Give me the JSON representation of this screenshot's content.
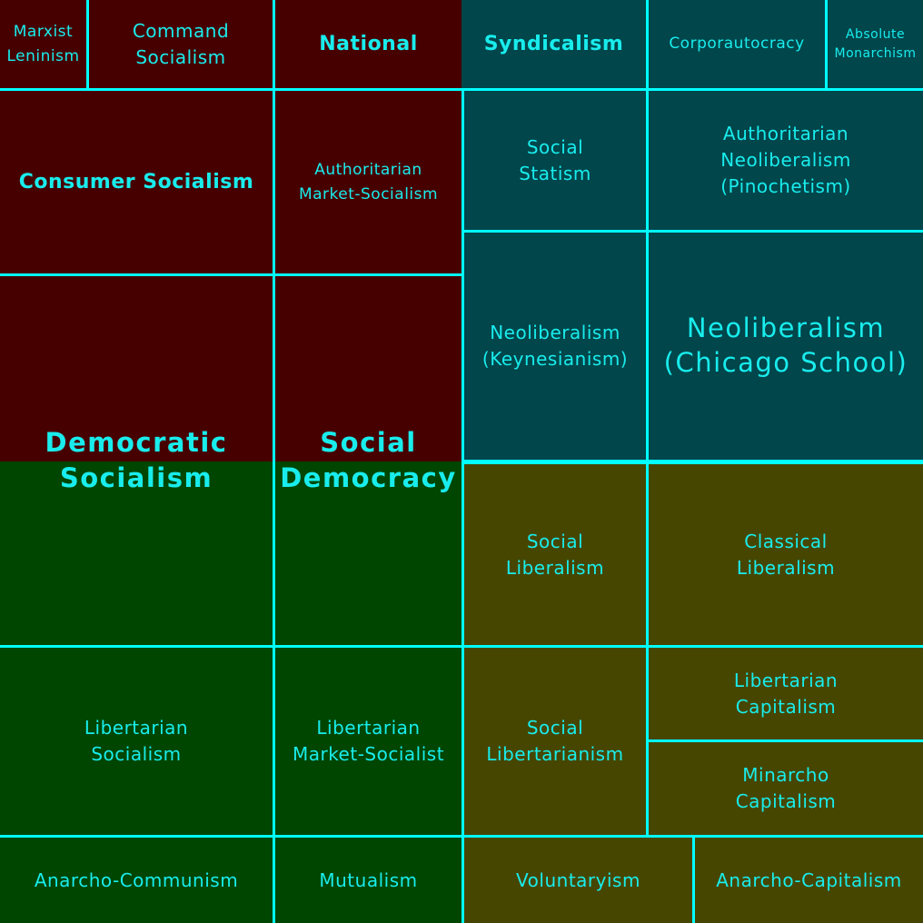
{
  "colors": {
    "authoritarian_left": "#460000",
    "authoritarian_right": "#00464b",
    "libertarian_left": "#004600",
    "libertarian_right": "#464600",
    "grid_lines": "#00ffff",
    "label_text": "#19ecec"
  },
  "cells": {
    "marxist_leninism": "Marxist\nLeninism",
    "command_socialism": "Command\nSocialism",
    "national": "National",
    "syndicalism": "Syndicalism",
    "corporautocracy": "Corporautocracy",
    "absolute_monarchism": "Absolute\nMonarchism",
    "consumer_socialism": "Consumer Socialism",
    "authoritarian_market_socialism": "Authoritarian\nMarket-Socialism",
    "social_statism": "Social\nStatism",
    "authoritarian_neoliberalism": "Authoritarian\nNeoliberalism\n(Pinochetism)",
    "neoliberalism_keynesianism": "Neoliberalism\n(Keynesianism)",
    "neoliberalism_chicago_school": "Neoliberalism\n(Chicago School)",
    "democratic_socialism": "Democratic\nSocialism",
    "social_democracy": "Social\nDemocracy",
    "social_liberalism": "Social\nLiberalism",
    "classical_liberalism": "Classical\nLiberalism",
    "libertarian_socialism": "Libertarian\nSocialism",
    "libertarian_market_socialist": "Libertarian\nMarket-Socialist",
    "social_libertarianism": "Social\nLibertarianism",
    "libertarian_capitalism": "Libertarian\nCapitalism",
    "minarcho_capitalism": "Minarcho\nCapitalism",
    "anarcho_communism": "Anarcho-Communism",
    "mutualism": "Mutualism",
    "voluntaryism": "Voluntaryism",
    "anarcho_capitalism": "Anarcho-Capitalism"
  }
}
